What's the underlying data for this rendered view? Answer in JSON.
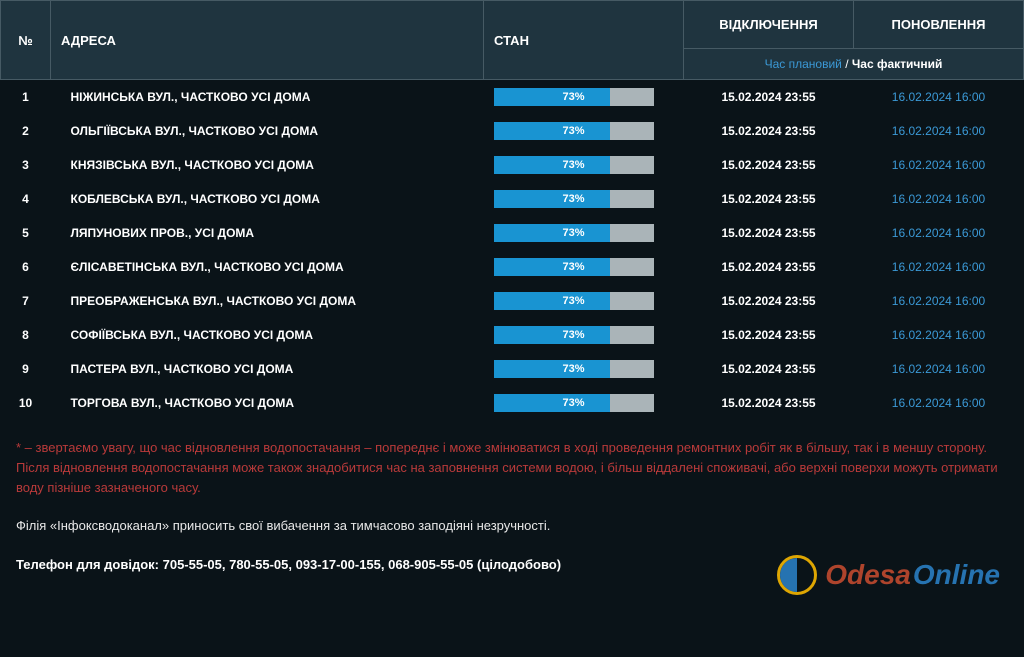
{
  "headers": {
    "num": "№",
    "address": "АДРЕСА",
    "state": "СТАН",
    "off": "ВІДКЛЮЧЕННЯ",
    "on": "ПОНОВЛЕННЯ",
    "time_planned": "Час плановий",
    "time_sep": " / ",
    "time_actual": "Час фактичний"
  },
  "rows": [
    {
      "num": "1",
      "addr": "НІЖИНСЬКА ВУЛ., ЧАСТКОВО УСІ ДОМА",
      "pct": 73,
      "off": "15.02.2024 23:55",
      "on": "16.02.2024 16:00"
    },
    {
      "num": "2",
      "addr": "ОЛЬГІЇВСЬКА ВУЛ., ЧАСТКОВО УСІ ДОМА",
      "pct": 73,
      "off": "15.02.2024 23:55",
      "on": "16.02.2024 16:00"
    },
    {
      "num": "3",
      "addr": "КНЯЗІВСЬКА ВУЛ., ЧАСТКОВО УСІ ДОМА",
      "pct": 73,
      "off": "15.02.2024 23:55",
      "on": "16.02.2024 16:00"
    },
    {
      "num": "4",
      "addr": "КОБЛЕВСЬКА ВУЛ., ЧАСТКОВО УСІ ДОМА",
      "pct": 73,
      "off": "15.02.2024 23:55",
      "on": "16.02.2024 16:00"
    },
    {
      "num": "5",
      "addr": "ЛЯПУНОВИХ ПРОВ., УСІ ДОМА",
      "pct": 73,
      "off": "15.02.2024 23:55",
      "on": "16.02.2024 16:00"
    },
    {
      "num": "6",
      "addr": "ЄЛІСАВЕТІНСЬКА ВУЛ., ЧАСТКОВО УСІ ДОМА",
      "pct": 73,
      "off": "15.02.2024 23:55",
      "on": "16.02.2024 16:00"
    },
    {
      "num": "7",
      "addr": "ПРЕОБРАЖЕНСЬКА ВУЛ., ЧАСТКОВО УСІ ДОМА",
      "pct": 73,
      "off": "15.02.2024 23:55",
      "on": "16.02.2024 16:00"
    },
    {
      "num": "8",
      "addr": "СОФІЇВСЬКА ВУЛ., ЧАСТКОВО УСІ ДОМА",
      "pct": 73,
      "off": "15.02.2024 23:55",
      "on": "16.02.2024 16:00"
    },
    {
      "num": "9",
      "addr": "ПАСТЕРА ВУЛ., ЧАСТКОВО УСІ ДОМА",
      "pct": 73,
      "off": "15.02.2024 23:55",
      "on": "16.02.2024 16:00"
    },
    {
      "num": "10",
      "addr": "ТОРГОВА ВУЛ., ЧАСТКОВО УСІ ДОМА",
      "pct": 73,
      "off": "15.02.2024 23:55",
      "on": "16.02.2024 16:00"
    }
  ],
  "progress": {
    "fill_color": "#1994d2",
    "track_color": "#aab4b8",
    "label_color": "#ffffff"
  },
  "footer": {
    "note_red": "* – звертаємо увагу, що час відновлення водопостачання – попереднє і може змінюватися в ході проведення ремонтних робіт як в більшу, так і в меншу сторону. Після відновлення водопостачання може також знадобитися час на заповнення системи водою, і більш віддалені споживачі, або верхні поверхи можуть отримати воду пізніше зазначеного часу.",
    "note_white": "Філія «Інфоксводоканал» приносить свої вибачення за тимчасово заподіяні незручності.",
    "phone_label": "Телефон для довідок:",
    "phone_numbers": "705-55-05, 780-55-05, 093-17-00-155, 068-905-55-05 (цілодобово)"
  },
  "watermark": {
    "odesa": "Odesa",
    "online": "Online"
  }
}
